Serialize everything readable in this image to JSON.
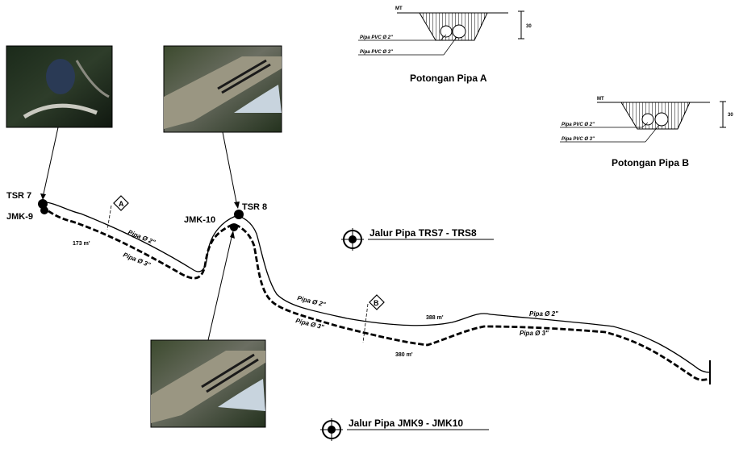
{
  "stations": {
    "tsr7": "TSR 7",
    "jmk9": "JMK-9",
    "tsr8": "TSR 8",
    "jmk10": "JMK-10"
  },
  "segment_labels": {
    "pipe_2_left": "Pipa Ø 2\"",
    "pipe_3_left": "Pipa Ø 3\"",
    "dist_left": "173 m'",
    "pipe_2_mid": "Pipa Ø 2\"",
    "pipe_3_mid": "Pipa Ø 3\"",
    "dist_mid_upper": "388 m'",
    "dist_mid_lower": "380 m'",
    "pipe_2_right": "Pipa Ø 2\"",
    "pipe_3_right": "Pipa Ø 3\""
  },
  "section_markers": {
    "a": "A",
    "b": "B"
  },
  "legend": {
    "route_tsr": "Jalur Pipa  TRS7 - TRS8",
    "route_jmk": "Jalur Pipa  JMK9 - JMK10"
  },
  "cross_section_a": {
    "title": "Potongan Pipa A",
    "ground_label": "MT",
    "pipe_2": "Pipa PVC Ø 2\"",
    "pipe_3": "Pipa PVC Ø 3\"",
    "depth": "30"
  },
  "cross_section_b": {
    "title": "Potongan Pipa B",
    "ground_label": "MT",
    "pipe_2": "Pipa PVC Ø 2\"",
    "pipe_3": "Pipa PVC Ø 3\"",
    "depth": "30"
  },
  "photos": [
    {
      "name": "photo-tsr7"
    },
    {
      "name": "photo-tsr8"
    },
    {
      "name": "photo-jmk10"
    }
  ]
}
